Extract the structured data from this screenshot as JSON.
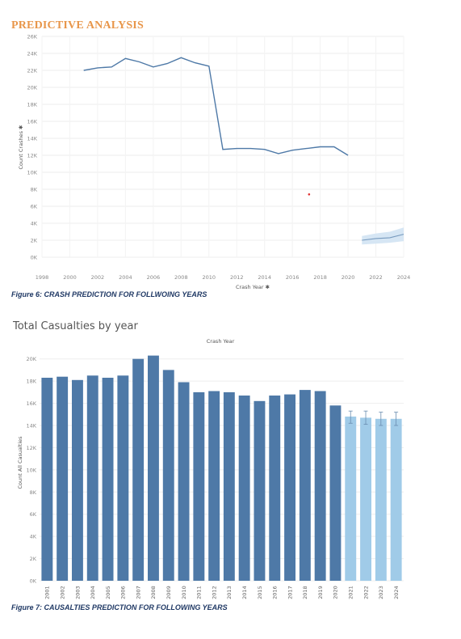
{
  "heading": "PREDICTIVE ANALYSIS",
  "figure6_caption": "Figure 6: CRASH PREDICTION FOR FOLLWOING YEARS",
  "figure7_caption": "Figure 7: CAUSALTIES PREDICTION FOR FOLLOWING YEARS",
  "chart2_title": "Total Casualties by year",
  "colors": {
    "line": "#4e79a7",
    "bar_actual": "#4e79a7",
    "bar_forecast": "#a0cbe8",
    "band": "#d6e6f4",
    "outlier": "#e03030",
    "heading": "#e8964a",
    "caption": "#1f3864"
  },
  "chart_data": [
    {
      "type": "line",
      "ylabel": "Count Crashes",
      "xlabel": "Crash Year",
      "ylim": [
        0,
        26000
      ],
      "xlim": [
        1998,
        2024
      ],
      "y_ticks": [
        "0K",
        "2K",
        "4K",
        "6K",
        "8K",
        "10K",
        "12K",
        "14K",
        "16K",
        "18K",
        "20K",
        "22K",
        "24K",
        "26K"
      ],
      "x_ticks": [
        "1998",
        "2000",
        "2002",
        "2004",
        "2006",
        "2008",
        "2010",
        "2012",
        "2014",
        "2016",
        "2018",
        "2020",
        "2022",
        "2024"
      ],
      "grid": true,
      "series": [
        {
          "x": [
            2001,
            2002,
            2003,
            2004,
            2005,
            2006,
            2007,
            2008,
            2009,
            2010,
            2011,
            2012,
            2013,
            2014,
            2015,
            2016,
            2017,
            2018,
            2019,
            2020
          ],
          "y": [
            22000,
            22300,
            22400,
            23400,
            23000,
            22400,
            22800,
            23500,
            22900,
            22500,
            12700,
            12800,
            12800,
            12700,
            12200,
            12600,
            12800,
            13000,
            13000,
            12000
          ]
        }
      ],
      "forecast": {
        "x": [
          2021,
          2022,
          2023,
          2024
        ],
        "y": [
          2000,
          2200,
          2300,
          2700
        ],
        "lower": [
          1500,
          1600,
          1700,
          1900
        ],
        "upper": [
          2500,
          2800,
          3000,
          3500
        ]
      },
      "outlier": {
        "x": 2017.2,
        "y": 7400
      }
    },
    {
      "type": "bar",
      "xlabel": "Crash Year",
      "ylabel": "Count All Casualties",
      "ylim": [
        0,
        21000
      ],
      "y_ticks": [
        "0K",
        "2K",
        "4K",
        "6K",
        "8K",
        "10K",
        "12K",
        "14K",
        "16K",
        "18K",
        "20K"
      ],
      "grid": true,
      "categories": [
        "2001",
        "2002",
        "2003",
        "2004",
        "2005",
        "2006",
        "2007",
        "2008",
        "2009",
        "2010",
        "2011",
        "2012",
        "2013",
        "2014",
        "2015",
        "2016",
        "2017",
        "2018",
        "2019",
        "2020",
        "2021",
        "2022",
        "2023",
        "2024"
      ],
      "values": [
        18300,
        18400,
        18100,
        18500,
        18300,
        18500,
        20000,
        20300,
        19000,
        17900,
        17000,
        17100,
        17000,
        16700,
        16200,
        16700,
        16800,
        17200,
        17100,
        15800,
        14800,
        14700,
        14600,
        14600
      ],
      "forecast_start_index": 20,
      "forecast_error": [
        {
          "low": 14200,
          "high": 15300
        },
        {
          "low": 14100,
          "high": 15300
        },
        {
          "low": 14000,
          "high": 15200
        },
        {
          "low": 14000,
          "high": 15200
        }
      ]
    }
  ]
}
